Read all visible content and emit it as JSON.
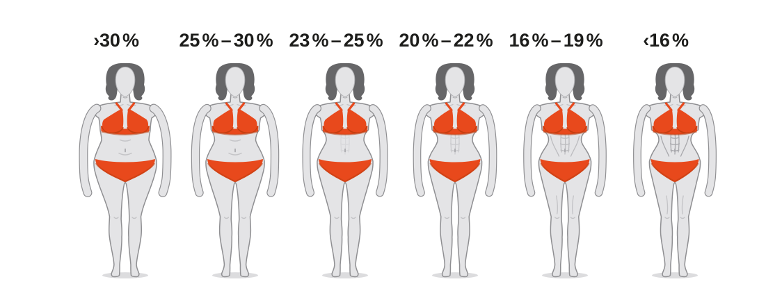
{
  "page": {
    "background": "#ffffff"
  },
  "colors": {
    "text": "#1d1d1b",
    "body_fill": "#e4e4e6",
    "body_line": "#8f8f92",
    "detail_line": "#c3c3c6",
    "deep_line": "#a2a2a6",
    "hair": "#666668",
    "face_line": "#b3b3b6",
    "bikini": "#e8491c",
    "bikini_shadow": "#bf3d10",
    "floor_shadow": "#dcdcde"
  },
  "figures": [
    {
      "id": "over-30",
      "label": "›30 %",
      "body": {
        "sh": 44,
        "chest": 37,
        "waist": 34,
        "belly": 36,
        "hip": 45,
        "legC": 17,
        "knee": 9.5,
        "calf": 10,
        "armUp": 50,
        "armEl": 60,
        "armWr": 59,
        "armHand": 54,
        "armW": 10.5,
        "creases": true,
        "abs": 0,
        "muscle": false
      }
    },
    {
      "id": "25-30",
      "label": "25 % – 30 %",
      "body": {
        "sh": 43.5,
        "chest": 35.5,
        "waist": 29.5,
        "belly": 30.5,
        "hip": 42,
        "legC": 16.5,
        "knee": 9,
        "calf": 9.6,
        "armUp": 49,
        "armEl": 57,
        "armWr": 56,
        "armHand": 51.5,
        "armW": 10,
        "creases": true,
        "abs": 0,
        "muscle": false
      }
    },
    {
      "id": "23-25",
      "label": "23 % – 25 %",
      "body": {
        "sh": 43,
        "chest": 34.5,
        "waist": 27,
        "belly": 27.5,
        "hip": 40,
        "legC": 16,
        "knee": 8.8,
        "calf": 9.4,
        "armUp": 48.5,
        "armEl": 55.5,
        "armWr": 54.5,
        "armHand": 50,
        "armW": 9.6,
        "creases": false,
        "abs": 0.18,
        "muscle": false
      }
    },
    {
      "id": "20-22",
      "label": "20 % – 22 %",
      "body": {
        "sh": 43,
        "chest": 34,
        "waist": 25,
        "belly": 25,
        "hip": 38.5,
        "legC": 15.6,
        "knee": 8.6,
        "calf": 9.2,
        "armUp": 48,
        "armEl": 54.5,
        "armWr": 53.5,
        "armHand": 49,
        "armW": 9.3,
        "creases": false,
        "abs": 0.38,
        "muscle": false
      }
    },
    {
      "id": "16-19",
      "label": "16 % – 19 %",
      "body": {
        "sh": 43,
        "chest": 34,
        "waist": 23.5,
        "belly": 23.5,
        "hip": 37.5,
        "legC": 15.3,
        "knee": 8.5,
        "calf": 9.1,
        "armUp": 47.5,
        "armEl": 54,
        "armWr": 53,
        "armHand": 48.5,
        "armW": 9.2,
        "creases": false,
        "abs": 0.6,
        "muscle": true
      }
    },
    {
      "id": "under-16",
      "label": "‹16 %",
      "body": {
        "sh": 43.5,
        "chest": 34.5,
        "waist": 23,
        "belly": 23,
        "hip": 36.5,
        "legC": 15.1,
        "knee": 8.5,
        "calf": 9.2,
        "armUp": 47.5,
        "armEl": 54,
        "armWr": 53,
        "armHand": 48.5,
        "armW": 9.4,
        "creases": false,
        "abs": 0.9,
        "muscle": true
      }
    }
  ]
}
